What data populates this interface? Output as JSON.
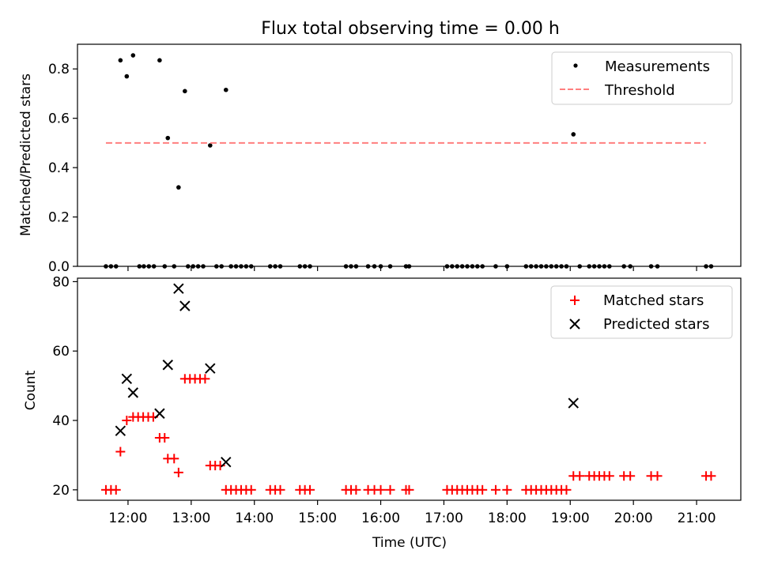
{
  "chart_data": [
    {
      "type": "scatter",
      "title": "Flux total observing time = 0.00 h",
      "xlabel": "",
      "ylabel": "Matched/Predicted stars",
      "xlim": [
        11.2,
        21.7
      ],
      "ylim": [
        0,
        0.9
      ],
      "yticks": [
        0.0,
        0.2,
        0.4,
        0.6,
        0.8
      ],
      "ytick_labels": [
        "0.0",
        "0.2",
        "0.4",
        "0.6",
        "0.8"
      ],
      "grid": false,
      "legend_position": "top-right",
      "series": [
        {
          "name": "Measurements",
          "marker": "dot",
          "color": "#000000",
          "points": [
            [
              11.88,
              0.835
            ],
            [
              11.98,
              0.77
            ],
            [
              12.08,
              0.855
            ],
            [
              12.5,
              0.835
            ],
            [
              12.63,
              0.52
            ],
            [
              12.8,
              0.32
            ],
            [
              12.9,
              0.71
            ],
            [
              13.3,
              0.49
            ],
            [
              13.55,
              0.715
            ],
            [
              19.05,
              0.535
            ],
            [
              11.65,
              0
            ],
            [
              11.73,
              0
            ],
            [
              11.81,
              0
            ],
            [
              12.18,
              0
            ],
            [
              12.25,
              0
            ],
            [
              12.33,
              0
            ],
            [
              12.41,
              0
            ],
            [
              12.58,
              0
            ],
            [
              12.73,
              0
            ],
            [
              12.95,
              0
            ],
            [
              13.03,
              0
            ],
            [
              13.11,
              0
            ],
            [
              13.19,
              0
            ],
            [
              13.4,
              0
            ],
            [
              13.48,
              0
            ],
            [
              13.63,
              0
            ],
            [
              13.71,
              0
            ],
            [
              13.79,
              0
            ],
            [
              13.87,
              0
            ],
            [
              13.95,
              0
            ],
            [
              14.25,
              0
            ],
            [
              14.33,
              0
            ],
            [
              14.41,
              0
            ],
            [
              14.72,
              0
            ],
            [
              14.8,
              0
            ],
            [
              14.88,
              0
            ],
            [
              15.45,
              0
            ],
            [
              15.53,
              0
            ],
            [
              15.61,
              0
            ],
            [
              15.8,
              0
            ],
            [
              15.9,
              0
            ],
            [
              16.0,
              0
            ],
            [
              16.15,
              0
            ],
            [
              16.4,
              0
            ],
            [
              16.45,
              0
            ],
            [
              17.05,
              0
            ],
            [
              17.13,
              0
            ],
            [
              17.21,
              0
            ],
            [
              17.29,
              0
            ],
            [
              17.37,
              0
            ],
            [
              17.45,
              0
            ],
            [
              17.53,
              0
            ],
            [
              17.61,
              0
            ],
            [
              17.82,
              0
            ],
            [
              18.0,
              0
            ],
            [
              18.3,
              0
            ],
            [
              18.38,
              0
            ],
            [
              18.46,
              0
            ],
            [
              18.54,
              0
            ],
            [
              18.62,
              0
            ],
            [
              18.7,
              0
            ],
            [
              18.78,
              0
            ],
            [
              18.86,
              0
            ],
            [
              18.94,
              0
            ],
            [
              19.15,
              0
            ],
            [
              19.3,
              0
            ],
            [
              19.38,
              0
            ],
            [
              19.46,
              0
            ],
            [
              19.54,
              0
            ],
            [
              19.62,
              0
            ],
            [
              19.85,
              0
            ],
            [
              19.95,
              0
            ],
            [
              20.28,
              0
            ],
            [
              20.38,
              0
            ],
            [
              21.15,
              0
            ],
            [
              21.23,
              0
            ]
          ]
        },
        {
          "name": "Threshold",
          "marker": "dashed-line",
          "color": "#ff7f7f",
          "points": [
            [
              11.65,
              0.5
            ],
            [
              21.15,
              0.5
            ]
          ]
        }
      ]
    },
    {
      "type": "scatter",
      "title": "",
      "xlabel": "Time (UTC)",
      "ylabel": "Count",
      "xlim": [
        11.2,
        21.7
      ],
      "ylim": [
        17,
        81
      ],
      "yticks": [
        20,
        40,
        60,
        80
      ],
      "ytick_labels": [
        "20",
        "40",
        "60",
        "80"
      ],
      "xticks": [
        12,
        13,
        14,
        15,
        16,
        17,
        18,
        19,
        20,
        21
      ],
      "xtick_labels": [
        "12:00",
        "13:00",
        "14:00",
        "15:00",
        "16:00",
        "17:00",
        "18:00",
        "19:00",
        "20:00",
        "21:00"
      ],
      "grid": false,
      "legend_position": "top-right",
      "series": [
        {
          "name": "Matched stars",
          "marker": "plus",
          "color": "#ff0000",
          "points": [
            [
              11.65,
              20
            ],
            [
              11.73,
              20
            ],
            [
              11.81,
              20
            ],
            [
              11.88,
              31
            ],
            [
              11.98,
              40
            ],
            [
              12.08,
              41
            ],
            [
              12.16,
              41
            ],
            [
              12.24,
              41
            ],
            [
              12.32,
              41
            ],
            [
              12.4,
              41
            ],
            [
              12.5,
              35
            ],
            [
              12.58,
              35
            ],
            [
              12.63,
              29
            ],
            [
              12.73,
              29
            ],
            [
              12.8,
              25
            ],
            [
              12.9,
              52
            ],
            [
              12.98,
              52
            ],
            [
              13.06,
              52
            ],
            [
              13.14,
              52
            ],
            [
              13.22,
              52
            ],
            [
              13.3,
              27
            ],
            [
              13.38,
              27
            ],
            [
              13.46,
              27
            ],
            [
              13.55,
              20
            ],
            [
              13.63,
              20
            ],
            [
              13.71,
              20
            ],
            [
              13.79,
              20
            ],
            [
              13.87,
              20
            ],
            [
              13.95,
              20
            ],
            [
              14.25,
              20
            ],
            [
              14.33,
              20
            ],
            [
              14.41,
              20
            ],
            [
              14.72,
              20
            ],
            [
              14.8,
              20
            ],
            [
              14.88,
              20
            ],
            [
              15.45,
              20
            ],
            [
              15.53,
              20
            ],
            [
              15.61,
              20
            ],
            [
              15.8,
              20
            ],
            [
              15.9,
              20
            ],
            [
              16.0,
              20
            ],
            [
              16.15,
              20
            ],
            [
              16.4,
              20
            ],
            [
              16.45,
              20
            ],
            [
              17.05,
              20
            ],
            [
              17.13,
              20
            ],
            [
              17.21,
              20
            ],
            [
              17.29,
              20
            ],
            [
              17.37,
              20
            ],
            [
              17.45,
              20
            ],
            [
              17.53,
              20
            ],
            [
              17.61,
              20
            ],
            [
              17.82,
              20
            ],
            [
              18.0,
              20
            ],
            [
              18.3,
              20
            ],
            [
              18.38,
              20
            ],
            [
              18.46,
              20
            ],
            [
              18.54,
              20
            ],
            [
              18.62,
              20
            ],
            [
              18.7,
              20
            ],
            [
              18.78,
              20
            ],
            [
              18.86,
              20
            ],
            [
              18.94,
              20
            ],
            [
              19.05,
              24
            ],
            [
              19.15,
              24
            ],
            [
              19.3,
              24
            ],
            [
              19.38,
              24
            ],
            [
              19.46,
              24
            ],
            [
              19.54,
              24
            ],
            [
              19.62,
              24
            ],
            [
              19.85,
              24
            ],
            [
              19.95,
              24
            ],
            [
              20.28,
              24
            ],
            [
              20.38,
              24
            ],
            [
              21.15,
              24
            ],
            [
              21.23,
              24
            ]
          ]
        },
        {
          "name": "Predicted stars",
          "marker": "x",
          "color": "#000000",
          "points": [
            [
              11.88,
              37
            ],
            [
              11.98,
              52
            ],
            [
              12.08,
              48
            ],
            [
              12.5,
              42
            ],
            [
              12.63,
              56
            ],
            [
              12.8,
              78
            ],
            [
              12.9,
              73
            ],
            [
              13.3,
              55
            ],
            [
              13.55,
              28
            ],
            [
              19.05,
              45
            ]
          ]
        }
      ]
    }
  ]
}
